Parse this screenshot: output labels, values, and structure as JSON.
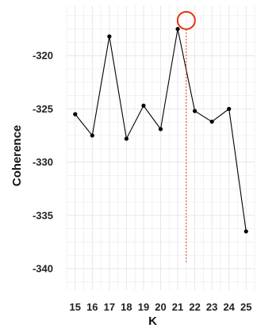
{
  "chart_data": {
    "type": "line",
    "title": "",
    "xlabel": "K",
    "ylabel": "Coherence",
    "x": [
      15,
      16,
      17,
      18,
      19,
      20,
      21,
      22,
      23,
      24,
      25
    ],
    "series": [
      {
        "values": [
          -325.5,
          -327.5,
          -318.2,
          -327.8,
          -324.7,
          -326.9,
          -317.5,
          -325.2,
          -326.2,
          -325.0,
          -336.5
        ]
      }
    ],
    "xlim": [
      14.5,
      25.5
    ],
    "ylim": [
      -342,
      -315.3
    ],
    "yticks": [
      -320,
      -325,
      -330,
      -335,
      -340
    ],
    "xticks": [
      15,
      16,
      17,
      18,
      19,
      20,
      21,
      22,
      23,
      24,
      25
    ],
    "grid": true,
    "legend": "none",
    "highlight": {
      "x": 21.5,
      "y": -316.7,
      "marker": "circle",
      "guide_to_y": -339.5
    },
    "colors": {
      "line": "#000000",
      "highlight": "#e8300f",
      "grid": "#e6e6e6"
    }
  }
}
